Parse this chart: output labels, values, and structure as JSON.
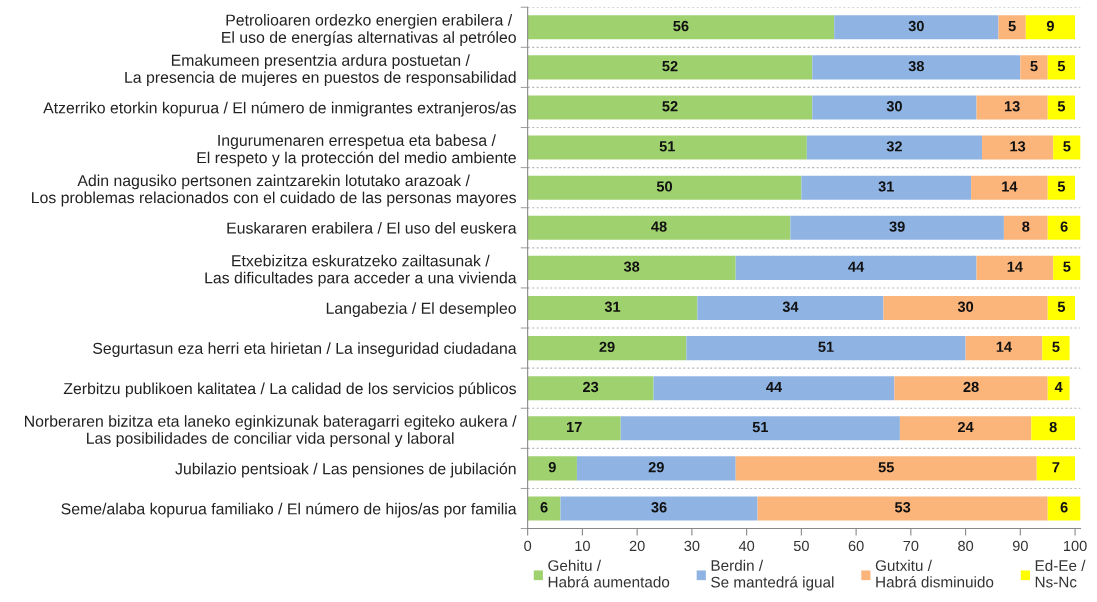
{
  "chart_data": {
    "type": "bar",
    "orientation": "horizontal",
    "stacked": true,
    "categories": [
      "Petrolioaren ordezko energien erabilera /\nEl uso de energías alternativas al petróleo",
      "Emakumeen presentzia ardura postuetan /\nLa presencia de mujeres en puestos de responsabilidad",
      "Atzerriko etorkin kopurua / El número de inmigrantes extranjeros/as",
      "Ingurumenaren errespetua eta babesa /\nEl respeto y la protección del medio ambiente",
      "Adin nagusiko pertsonen zaintzarekin lotutako arazoak /\nLos problemas relacionados con el cuidado de las personas mayores",
      "Euskararen erabilera / El uso del euskera",
      "Etxebizitza eskuratzeko zailtasunak /\nLas dificultades para acceder a una vivienda",
      "Langabezia / El desempleo",
      "Segurtasun eza herri eta hirietan / La inseguridad ciudadana",
      "Zerbitzu publikoen kalitatea / La calidad de los servicios públicos",
      "Norberaren bizitza eta laneko eginkizunak bateragarri egiteko aukera /\nLas posibilidades de conciliar vida personal y laboral",
      "Jubilazio pentsioak / Las pensiones de jubilación",
      "Seme/alaba kopurua familiako / El número de hijos/as por familia"
    ],
    "series": [
      {
        "name": "Gehitu /\nHabrá aumentado",
        "color": "#9fd26e",
        "values": [
          56,
          52,
          52,
          51,
          50,
          48,
          38,
          31,
          29,
          23,
          17,
          9,
          6
        ]
      },
      {
        "name": "Berdin /\nSe mantedrá igual",
        "color": "#8fb4e3",
        "values": [
          30,
          38,
          30,
          32,
          31,
          39,
          44,
          34,
          51,
          44,
          51,
          29,
          36
        ]
      },
      {
        "name": "Gutxitu /\nHabrá disminuido",
        "color": "#fbb47a",
        "values": [
          5,
          5,
          13,
          13,
          14,
          8,
          14,
          30,
          14,
          28,
          24,
          55,
          53
        ]
      },
      {
        "name": "Ed-Ee /\nNs-Nc",
        "color": "#ffff00",
        "values": [
          9,
          5,
          5,
          5,
          5,
          6,
          5,
          5,
          5,
          4,
          8,
          7,
          6
        ]
      }
    ],
    "xlim": [
      0,
      101
    ],
    "xticks": [
      0,
      10,
      20,
      30,
      40,
      50,
      60,
      70,
      80,
      90,
      100
    ],
    "grid": "y",
    "legend": "bottom",
    "data_labels": true
  }
}
